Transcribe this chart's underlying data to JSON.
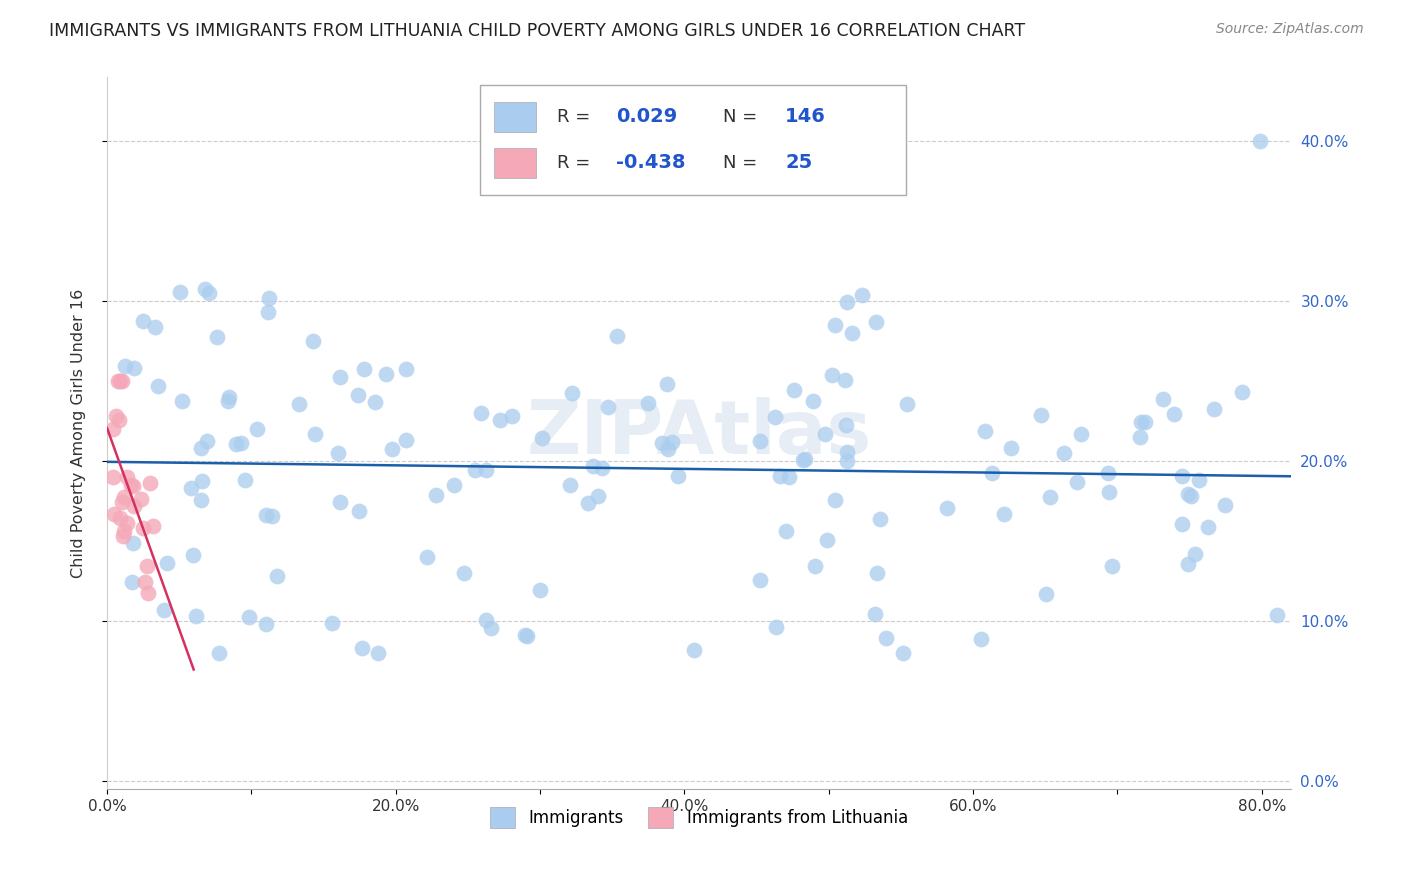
{
  "title": "IMMIGRANTS VS IMMIGRANTS FROM LITHUANIA CHILD POVERTY AMONG GIRLS UNDER 16 CORRELATION CHART",
  "source": "Source: ZipAtlas.com",
  "ylabel": "Child Poverty Among Girls Under 16",
  "xlabel_ticks": [
    "0.0%",
    "",
    "20.0%",
    "",
    "40.0%",
    "",
    "60.0%",
    "",
    "80.0%"
  ],
  "ylabel_ticks_right": [
    "0.0%",
    "10.0%",
    "20.0%",
    "30.0%",
    "40.0%"
  ],
  "xlim": [
    0.0,
    0.82
  ],
  "ylim": [
    -0.005,
    0.44
  ],
  "r_blue": 0.029,
  "n_blue": 146,
  "r_pink": -0.438,
  "n_pink": 25,
  "blue_color": "#aaccee",
  "pink_color": "#f4a8b8",
  "blue_line_color": "#1a5fa8",
  "pink_line_color": "#d43060",
  "watermark": "ZIPAtlas",
  "legend_blue": "Immigrants",
  "legend_pink": "Immigrants from Lithuania"
}
